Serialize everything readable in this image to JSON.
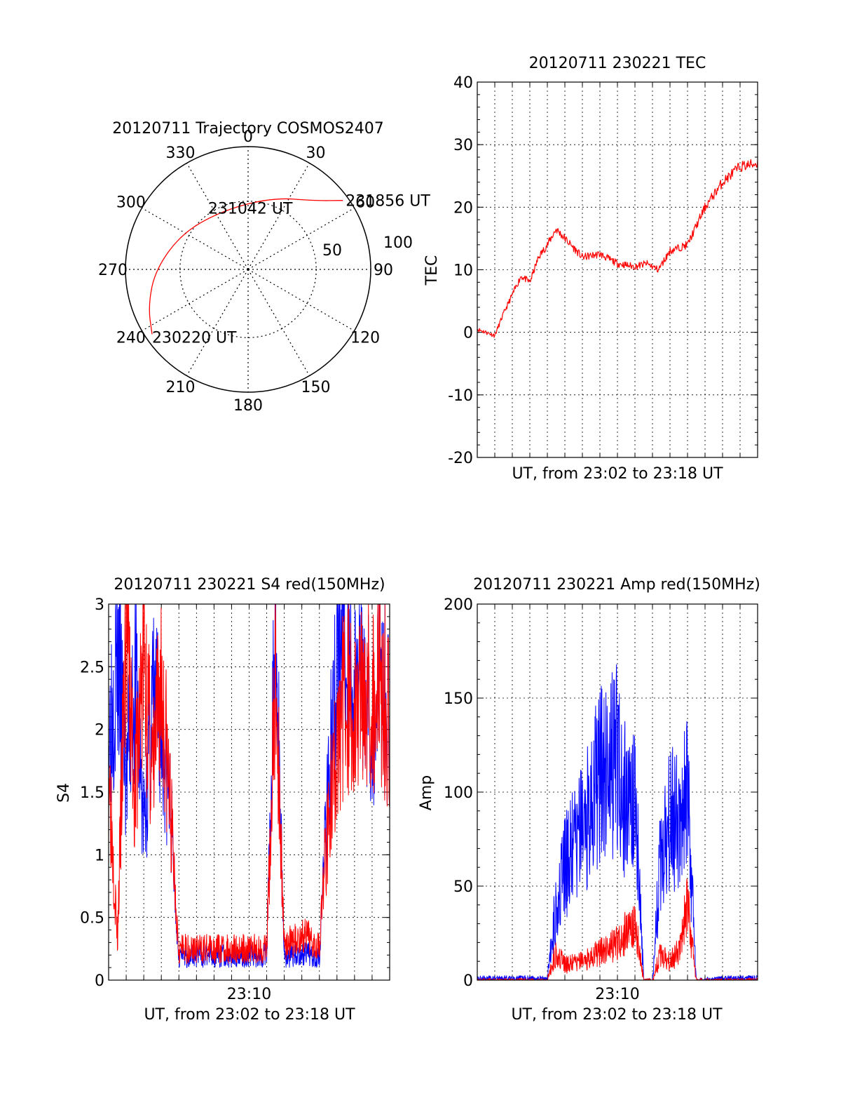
{
  "chart_data": [
    {
      "type": "polar",
      "title": "20120711 Trajectory COSMOS2407",
      "azimuth_labels": [
        "0",
        "30",
        "60",
        "90",
        "120",
        "150",
        "180",
        "210",
        "240",
        "270",
        "300",
        "330"
      ],
      "radius_labels": [
        "50",
        "100"
      ],
      "colors": {
        "track": "#ff0000",
        "grid": "#000000"
      },
      "series": [
        {
          "points": [
            {
              "az": 236,
              "zenith": 85
            },
            {
              "az": 250,
              "zenith": 78
            },
            {
              "az": 270,
              "zenith": 68
            },
            {
              "az": 300,
              "zenith": 55
            },
            {
              "az": 340,
              "zenith": 47
            },
            {
              "az": 20,
              "zenith": 56
            },
            {
              "az": 44,
              "zenith": 70
            },
            {
              "az": 54,
              "zenith": 86
            }
          ]
        }
      ],
      "annotations": [
        {
          "text": "231856 UT",
          "az": 54,
          "zenith": 86
        },
        {
          "text": "231042 UT",
          "az": 2,
          "zenith": 47
        },
        {
          "text": "230220 UT",
          "az": 236,
          "zenith": 85
        }
      ]
    },
    {
      "type": "line",
      "title": "20120711 230221 TEC",
      "xlabel": "UT, from 23:02 to 23:18 UT",
      "ylabel": "TEC",
      "xlim": [
        "23:02",
        "23:18"
      ],
      "ylim": [
        -20,
        40
      ],
      "yticks": [
        "-20",
        "-10",
        "0",
        "10",
        "20",
        "30",
        "40"
      ],
      "grid": true,
      "series": [
        {
          "color": "#ff0000",
          "x": [
            "23:02",
            "23:03",
            "23:03:30",
            "23:04",
            "23:04:30",
            "23:05",
            "23:05:30",
            "23:06",
            "23:06:30",
            "23:07",
            "23:08",
            "23:09",
            "23:10",
            "23:11",
            "23:11:40",
            "23:12:20",
            "23:13",
            "23:14",
            "23:15",
            "23:16",
            "23:17",
            "23:18"
          ],
          "y": [
            0.5,
            -0.5,
            3,
            6,
            9,
            8,
            12,
            14,
            16.5,
            15,
            12,
            12.5,
            11,
            10.5,
            11,
            10,
            13,
            14,
            20,
            24,
            26.5,
            27
          ]
        }
      ]
    },
    {
      "type": "line",
      "title": "20120711 230221 S4 red(150MHz)",
      "xlabel": "UT, from 23:02 to 23:18 UT",
      "ylabel": "S4",
      "xlim": [
        "23:02",
        "23:18"
      ],
      "ylim": [
        0,
        3
      ],
      "yticks": [
        "0",
        "0.5",
        "1",
        "1.5",
        "2",
        "2.5",
        "3"
      ],
      "xticks": [
        "23:10"
      ],
      "grid": true,
      "series": [
        {
          "color": "#0000ff",
          "x": [
            "23:02",
            "23:02:30",
            "23:03",
            "23:03:30",
            "23:04",
            "23:04:30",
            "23:05",
            "23:05:30",
            "23:06",
            "23:07",
            "23:08",
            "23:09",
            "23:10",
            "23:11",
            "23:11:30",
            "23:12",
            "23:12:30",
            "23:13",
            "23:14",
            "23:14:30",
            "23:15",
            "23:15:30",
            "23:16",
            "23:16:30",
            "23:17",
            "23:17:30",
            "23:18"
          ],
          "y": [
            2.0,
            2.6,
            1.6,
            2.4,
            1.2,
            2.2,
            2.0,
            1.4,
            0.2,
            0.2,
            0.2,
            0.2,
            0.2,
            0.2,
            2.8,
            0.2,
            0.2,
            0.2,
            0.2,
            1.6,
            2.4,
            2.8,
            2.2,
            2.6,
            2.0,
            2.5,
            2.0
          ]
        },
        {
          "color": "#ff0000",
          "x": [
            "23:02",
            "23:02:30",
            "23:03",
            "23:03:30",
            "23:04",
            "23:04:30",
            "23:05",
            "23:05:30",
            "23:06",
            "23:07",
            "23:08",
            "23:09",
            "23:10",
            "23:11",
            "23:11:30",
            "23:12",
            "23:12:30",
            "23:13",
            "23:14",
            "23:14:30",
            "23:15",
            "23:15:30",
            "23:16",
            "23:16:30",
            "23:17",
            "23:17:30",
            "23:18"
          ],
          "y": [
            1.8,
            0.3,
            2.8,
            1.5,
            2.6,
            1.6,
            2.4,
            1.4,
            0.25,
            0.25,
            0.25,
            0.25,
            0.25,
            0.25,
            2.4,
            0.3,
            0.3,
            0.35,
            0.3,
            1.3,
            1.8,
            2.4,
            2.0,
            2.5,
            2.2,
            2.4,
            2.0
          ]
        }
      ]
    },
    {
      "type": "line",
      "title": "20120711 230221 Amp red(150MHz)",
      "xlabel": "UT, from 23:02 to 23:18 UT",
      "ylabel": "Amp",
      "xlim": [
        "23:02",
        "23:18"
      ],
      "ylim": [
        0,
        200
      ],
      "yticks": [
        "0",
        "50",
        "100",
        "150",
        "200"
      ],
      "xticks": [
        "23:10"
      ],
      "grid": true,
      "series": [
        {
          "color": "#0000ff",
          "x": [
            "23:02",
            "23:04",
            "23:06",
            "23:06:30",
            "23:07",
            "23:08",
            "23:09",
            "23:10",
            "23:10:30",
            "23:11",
            "23:11:30",
            "23:12",
            "23:12:30",
            "23:13",
            "23:13:30",
            "23:14",
            "23:14:30",
            "23:16",
            "23:18"
          ],
          "y": [
            1,
            1,
            1,
            40,
            60,
            80,
            110,
            120,
            90,
            100,
            0,
            0,
            70,
            90,
            80,
            100,
            0,
            1,
            1
          ]
        },
        {
          "color": "#ff0000",
          "x": [
            "23:02",
            "23:06",
            "23:06:30",
            "23:07",
            "23:08",
            "23:09",
            "23:10",
            "23:10:30",
            "23:11",
            "23:11:30",
            "23:12",
            "23:12:30",
            "23:13",
            "23:13:30",
            "23:14",
            "23:14:30",
            "23:18"
          ],
          "y": [
            0,
            0,
            15,
            8,
            10,
            15,
            20,
            25,
            30,
            0,
            0,
            15,
            10,
            15,
            40,
            0,
            0
          ]
        }
      ]
    }
  ]
}
